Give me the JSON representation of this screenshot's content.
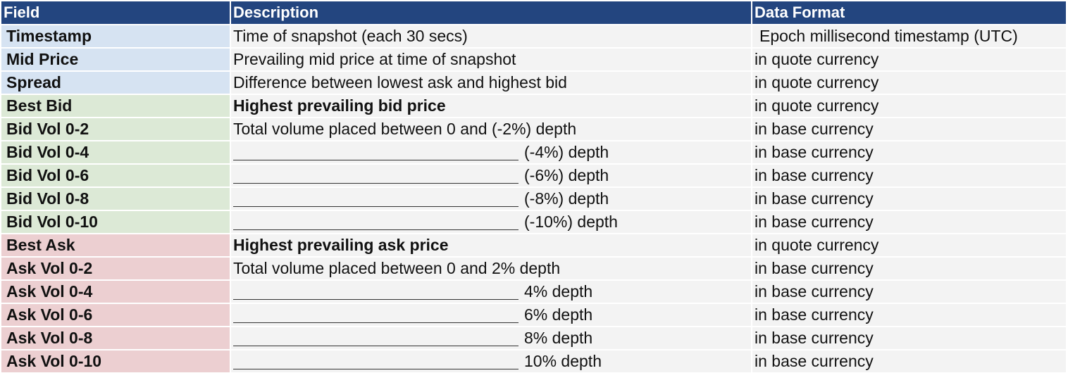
{
  "headers": [
    "Field",
    "Description",
    "Data Format"
  ],
  "colors": {
    "header_bg": "#23457f",
    "cell_bg": "#f3f3f3",
    "blue_field": "#d6e3f2",
    "green_field": "#dce9d6",
    "red_field": "#eccfd1"
  },
  "rows": [
    {
      "field": "Timestamp",
      "desc": "Time of snapshot (each 30 secs)",
      "format": "Epoch millisecond timestamp (UTC)"
    },
    {
      "field": "Mid Price",
      "desc": "Prevailing mid price at time of snapshot",
      "format": "in quote currency"
    },
    {
      "field": "Spread",
      "desc": "Difference between lowest ask and highest bid",
      "format": "in quote currency"
    },
    {
      "field": "Best Bid",
      "desc": "Highest prevailing bid price",
      "format": "in quote currency"
    },
    {
      "field": "Bid Vol 0-2",
      "desc": "Total volume placed between 0 and (-2%) depth",
      "format": "in base currency"
    },
    {
      "field": "Bid Vol 0-4",
      "desc": "(-4%) depth",
      "format": "in base currency"
    },
    {
      "field": "Bid Vol 0-6",
      "desc": "(-6%) depth",
      "format": "in base currency"
    },
    {
      "field": "Bid Vol 0-8",
      "desc": "(-8%) depth",
      "format": "in base currency"
    },
    {
      "field": "Bid Vol 0-10",
      "desc": "(-10%) depth",
      "format": "in base currency"
    },
    {
      "field": "Best Ask",
      "desc": "Highest prevailing ask price",
      "format": "in quote currency"
    },
    {
      "field": "Ask Vol 0-2",
      "desc": "Total volume placed between 0 and 2% depth",
      "format": "in base currency"
    },
    {
      "field": "Ask Vol 0-4",
      "desc": "4% depth",
      "format": "in base currency"
    },
    {
      "field": "Ask Vol 0-6",
      "desc": "6% depth",
      "format": "in base currency"
    },
    {
      "field": "Ask Vol 0-8",
      "desc": "8% depth",
      "format": "in base currency"
    },
    {
      "field": "Ask Vol 0-10",
      "desc": "10% depth",
      "format": "in base currency"
    }
  ]
}
